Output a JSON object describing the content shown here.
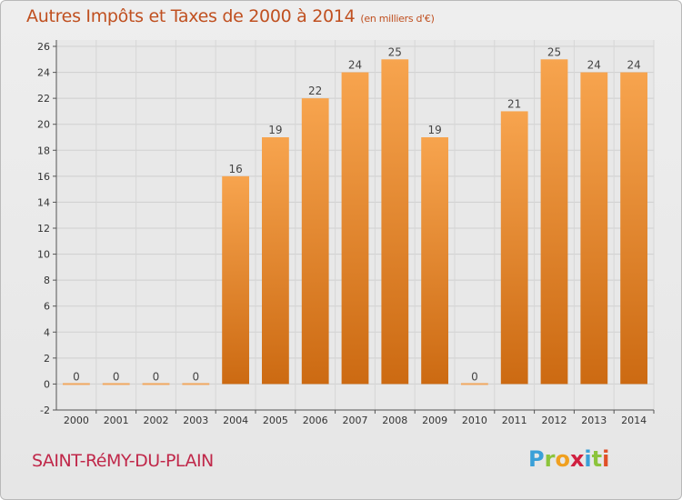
{
  "title": "Autres Impôts et Taxes de 2000 à 2014",
  "subtitle": "(en milliers d'€)",
  "commune": "SAINT-RéMY-DU-PLAIN",
  "logo": {
    "letters": [
      "P",
      "r",
      "o",
      "x",
      "i",
      "t",
      "i"
    ],
    "colors": [
      "#3aa0d8",
      "#8cc43c",
      "#f0a020",
      "#d02040",
      "#3aa0d8",
      "#8cc43c",
      "#e05028"
    ]
  },
  "colors": {
    "bar_top": "#f7a44e",
    "bar_bottom": "#cc6a12",
    "title": "#c05020"
  },
  "chart_data": {
    "type": "bar",
    "categories": [
      "2000",
      "2001",
      "2002",
      "2003",
      "2004",
      "2005",
      "2006",
      "2007",
      "2008",
      "2009",
      "2010",
      "2011",
      "2012",
      "2013",
      "2014"
    ],
    "values": [
      0,
      0,
      0,
      0,
      16,
      19,
      22,
      24,
      25,
      19,
      0,
      21,
      25,
      24,
      24
    ],
    "data_labels": [
      "0",
      "0",
      "0",
      "0",
      "16",
      "19",
      "22",
      "24",
      "25",
      "19",
      "0",
      "21",
      "25",
      "24",
      "24"
    ],
    "title": "Autres Impôts et Taxes de 2000 à 2014",
    "xlabel": "",
    "ylabel": "",
    "ylim": [
      -2,
      26
    ],
    "yticks": [
      -2,
      0,
      2,
      4,
      6,
      8,
      10,
      12,
      14,
      16,
      18,
      20,
      22,
      24,
      26
    ],
    "grid": true,
    "legend": "none"
  }
}
